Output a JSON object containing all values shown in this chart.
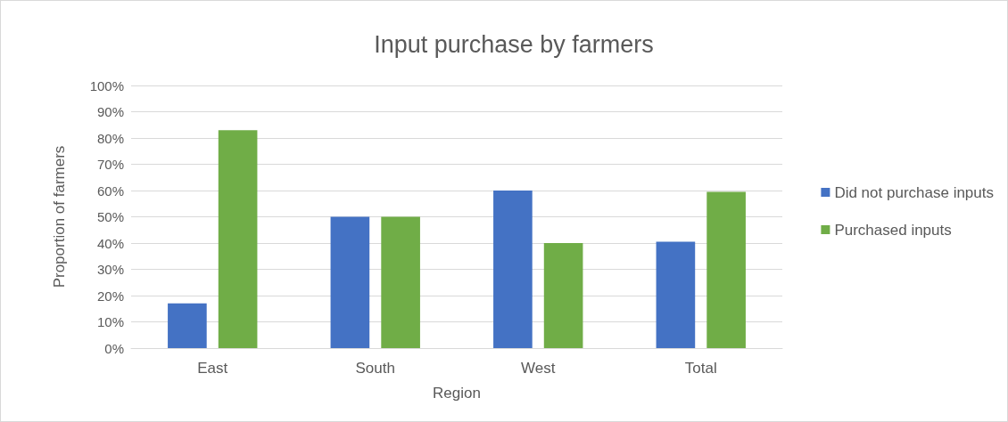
{
  "chart_data": {
    "type": "bar",
    "title": "Input purchase by farmers",
    "xlabel": "Region",
    "ylabel": "Proportion of farmers",
    "categories": [
      "East",
      "South",
      "West",
      "Total"
    ],
    "series": [
      {
        "name": "Did not purchase inputs",
        "color": "#4472c4",
        "values": [
          17,
          50,
          60,
          40.5
        ]
      },
      {
        "name": "Purchased inputs",
        "color": "#70ad47",
        "values": [
          83,
          50,
          40,
          59.5
        ]
      }
    ],
    "ylim": [
      0,
      100
    ],
    "yticks": [
      {
        "value": 0,
        "label": "0%"
      },
      {
        "value": 10,
        "label": "10%"
      },
      {
        "value": 20,
        "label": "20%"
      },
      {
        "value": 30,
        "label": "30%"
      },
      {
        "value": 40,
        "label": "40%"
      },
      {
        "value": 50,
        "label": "50%"
      },
      {
        "value": 60,
        "label": "60%"
      },
      {
        "value": 70,
        "label": "70%"
      },
      {
        "value": 80,
        "label": "80%"
      },
      {
        "value": 90,
        "label": "90%"
      },
      {
        "value": 100,
        "label": "100%"
      }
    ],
    "grid": "y",
    "legend": "right"
  }
}
